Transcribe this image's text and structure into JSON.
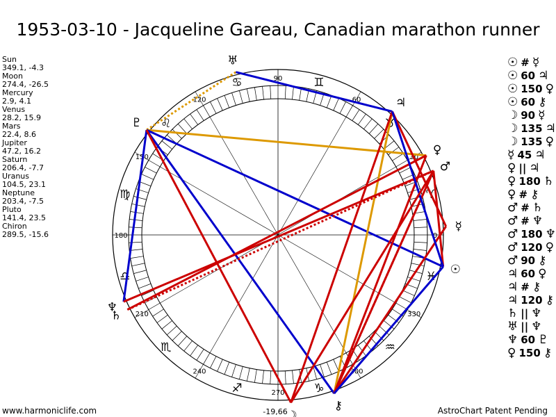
{
  "title": "1953-03-10 - Jacqueline Gareau, Canadian marathon runner",
  "footer": {
    "site": "www.harmoniclife.com",
    "notice": "AstroChart Patent Pending"
  },
  "wheel": {
    "degree_labels": [
      {
        "deg": 0,
        "text": "0"
      },
      {
        "deg": 30,
        "text": "30"
      },
      {
        "deg": 60,
        "text": "60"
      },
      {
        "deg": 90,
        "text": "90"
      },
      {
        "deg": 120,
        "text": "120"
      },
      {
        "deg": 150,
        "text": "150"
      },
      {
        "deg": 180,
        "text": "180"
      },
      {
        "deg": 210,
        "text": "210"
      },
      {
        "deg": 240,
        "text": "240"
      },
      {
        "deg": 270,
        "text": "270"
      },
      {
        "deg": 300,
        "text": "300"
      },
      {
        "deg": 330,
        "text": "330"
      }
    ],
    "south_offset_label": "-19,66",
    "signs": [
      {
        "deg": 15,
        "glyph": "♈"
      },
      {
        "deg": 45,
        "glyph": "♉"
      },
      {
        "deg": 75,
        "glyph": "♊"
      },
      {
        "deg": 105,
        "glyph": "♋"
      },
      {
        "deg": 135,
        "glyph": "♌"
      },
      {
        "deg": 165,
        "glyph": "♍"
      },
      {
        "deg": 195,
        "glyph": "♎"
      },
      {
        "deg": 225,
        "glyph": "♏"
      },
      {
        "deg": 255,
        "glyph": "♐"
      },
      {
        "deg": 285,
        "glyph": "♑"
      },
      {
        "deg": 315,
        "glyph": "♒"
      },
      {
        "deg": 345,
        "glyph": "♓"
      }
    ]
  },
  "planets": [
    {
      "name": "Sun",
      "glyph": "☉",
      "lon": 349.1,
      "lat": -4.3,
      "coords": "349.1, -4.3"
    },
    {
      "name": "Moon",
      "glyph": "☽",
      "lon": 274.4,
      "lat": -26.5,
      "coords": "274.4, -26.5"
    },
    {
      "name": "Mercury",
      "glyph": "☿",
      "lon": 2.9,
      "lat": 4.1,
      "coords": "2.9, 4.1"
    },
    {
      "name": "Venus",
      "glyph": "♀",
      "lon": 28.2,
      "lat": 15.9,
      "coords": "28.2, 15.9"
    },
    {
      "name": "Mars",
      "glyph": "♂",
      "lon": 22.4,
      "lat": 8.6,
      "coords": "22.4, 8.6"
    },
    {
      "name": "Jupiter",
      "glyph": "♃",
      "lon": 47.2,
      "lat": 16.2,
      "coords": "47.2, 16.2"
    },
    {
      "name": "Saturn",
      "glyph": "♄",
      "lon": 206.4,
      "lat": -7.7,
      "coords": "206.4, -7.7"
    },
    {
      "name": "Uranus",
      "glyph": "♅",
      "lon": 104.5,
      "lat": 23.1,
      "coords": "104.5, 23.1"
    },
    {
      "name": "Neptune",
      "glyph": "♆",
      "lon": 203.4,
      "lat": -7.5,
      "coords": "203.4, -7.5"
    },
    {
      "name": "Pluto",
      "glyph": "♇",
      "lon": 141.4,
      "lat": 23.5,
      "coords": "141.4, 23.5"
    },
    {
      "name": "Chiron",
      "glyph": "⚷",
      "lon": 289.5,
      "lat": -15.6,
      "coords": "289.5, -15.6"
    }
  ],
  "aspects": [
    {
      "p1": "☉",
      "sym": "#",
      "p2": "☿",
      "color": "#cc0000",
      "style": "solid"
    },
    {
      "p1": "☉",
      "sym": "60",
      "p2": "♃",
      "color": "#0000cc",
      "style": "solid"
    },
    {
      "p1": "☉",
      "sym": "150",
      "p2": "♀",
      "color": "#cc0000",
      "style": "solid"
    },
    {
      "p1": "☉",
      "sym": "60",
      "p2": "⚷",
      "color": "#0000cc",
      "style": "solid"
    },
    {
      "p1": "☽",
      "sym": "90",
      "p2": "☿",
      "color": "#cc0000",
      "style": "solid"
    },
    {
      "p1": "☽",
      "sym": "135",
      "p2": "♃",
      "color": "#cc0000",
      "style": "dotted"
    },
    {
      "p1": "☽",
      "sym": "135",
      "p2": "♀",
      "color": "#cc0000",
      "style": "dotted"
    },
    {
      "p1": "☿",
      "sym": "45",
      "p2": "♃",
      "color": "#cc0000",
      "style": "dotted"
    },
    {
      "p1": "♀",
      "sym": "||",
      "p2": "♃",
      "color": "#cc0000",
      "style": "dotted"
    },
    {
      "p1": "♀",
      "sym": "180",
      "p2": "♄",
      "color": "#cc0000",
      "style": "solid"
    },
    {
      "p1": "♀",
      "sym": "#",
      "p2": "⚷",
      "color": "#cc0000",
      "style": "solid"
    },
    {
      "p1": "♂",
      "sym": "#",
      "p2": "♄",
      "color": "#cc0000",
      "style": "solid"
    },
    {
      "p1": "♂",
      "sym": "#",
      "p2": "♆",
      "color": "#cc0000",
      "style": "solid"
    },
    {
      "p1": "♂",
      "sym": "180",
      "p2": "♆",
      "color": "#cc0000",
      "style": "solid"
    },
    {
      "p1": "♂",
      "sym": "120",
      "p2": "♀",
      "color": "#0000cc",
      "style": "solid"
    },
    {
      "p1": "♂",
      "sym": "90",
      "p2": "⚷",
      "color": "#cc0000",
      "style": "solid"
    },
    {
      "p1": "♃",
      "sym": "60",
      "p2": "♀",
      "color": "#0000cc",
      "style": "solid"
    },
    {
      "p1": "♃",
      "sym": "#",
      "p2": "⚷",
      "color": "#cc0000",
      "style": "solid"
    },
    {
      "p1": "♃",
      "sym": "120",
      "p2": "⚷",
      "color": "#0000cc",
      "style": "solid"
    },
    {
      "p1": "♄",
      "sym": "||",
      "p2": "♆",
      "color": "#cc0000",
      "style": "solid"
    },
    {
      "p1": "♅",
      "sym": "||",
      "p2": "♆",
      "color": "#cc0000",
      "style": "solid"
    },
    {
      "p1": "♆",
      "sym": "60",
      "p2": "♇",
      "color": "#0000cc",
      "style": "solid"
    },
    {
      "p1": "♀",
      "sym": "150",
      "p2": "⚷",
      "color": "#cc0000",
      "style": "solid"
    }
  ],
  "chart_lines": [
    {
      "from": "Uranus",
      "to": "Pluto",
      "color": "#dd9900",
      "style": "dotted"
    },
    {
      "from": "Uranus",
      "to": "Jupiter",
      "color": "#0000cc",
      "style": "solid"
    },
    {
      "from": "Pluto",
      "to": "Venus",
      "color": "#dd9900",
      "style": "solid"
    },
    {
      "from": "Pluto",
      "to": "Sun",
      "color": "#0000cc",
      "style": "solid"
    },
    {
      "from": "Pluto",
      "to": "Neptune",
      "color": "#0000cc",
      "style": "solid"
    },
    {
      "from": "Pluto",
      "to": "Chiron",
      "color": "#0000cc",
      "style": "solid"
    },
    {
      "from": "Pluto",
      "to": "Moon",
      "color": "#cc0000",
      "style": "solid"
    },
    {
      "from": "Jupiter",
      "to": "Chiron",
      "color": "#dd9900",
      "style": "solid"
    },
    {
      "from": "Jupiter",
      "to": "Moon",
      "color": "#cc0000",
      "style": "solid"
    },
    {
      "from": "Jupiter",
      "to": "Mercury",
      "color": "#cc0000",
      "style": "solid"
    },
    {
      "from": "Venus",
      "to": "Saturn",
      "color": "#cc0000",
      "style": "solid"
    },
    {
      "from": "Venus",
      "to": "Chiron",
      "color": "#cc0000",
      "style": "solid"
    },
    {
      "from": "Mars",
      "to": "Neptune",
      "color": "#cc0000",
      "style": "solid"
    },
    {
      "from": "Mars",
      "to": "Chiron",
      "color": "#cc0000",
      "style": "solid"
    },
    {
      "from": "Mars",
      "to": "Saturn",
      "color": "#cc0000",
      "style": "dotted"
    },
    {
      "from": "Mars",
      "to": "Chiron",
      "color": "#cc0000",
      "style": "dotted"
    },
    {
      "from": "Mercury",
      "to": "Chiron",
      "color": "#cc0000",
      "style": "solid"
    },
    {
      "from": "Sun",
      "to": "Chiron",
      "color": "#0000cc",
      "style": "solid"
    },
    {
      "from": "Sun",
      "to": "Mars",
      "color": "#cc0000",
      "style": "solid"
    },
    {
      "from": "Jupiter",
      "to": "Sun",
      "color": "#0000cc",
      "style": "solid"
    },
    {
      "from": "Moon",
      "to": "Mars",
      "color": "#cc0000",
      "style": "solid"
    }
  ]
}
